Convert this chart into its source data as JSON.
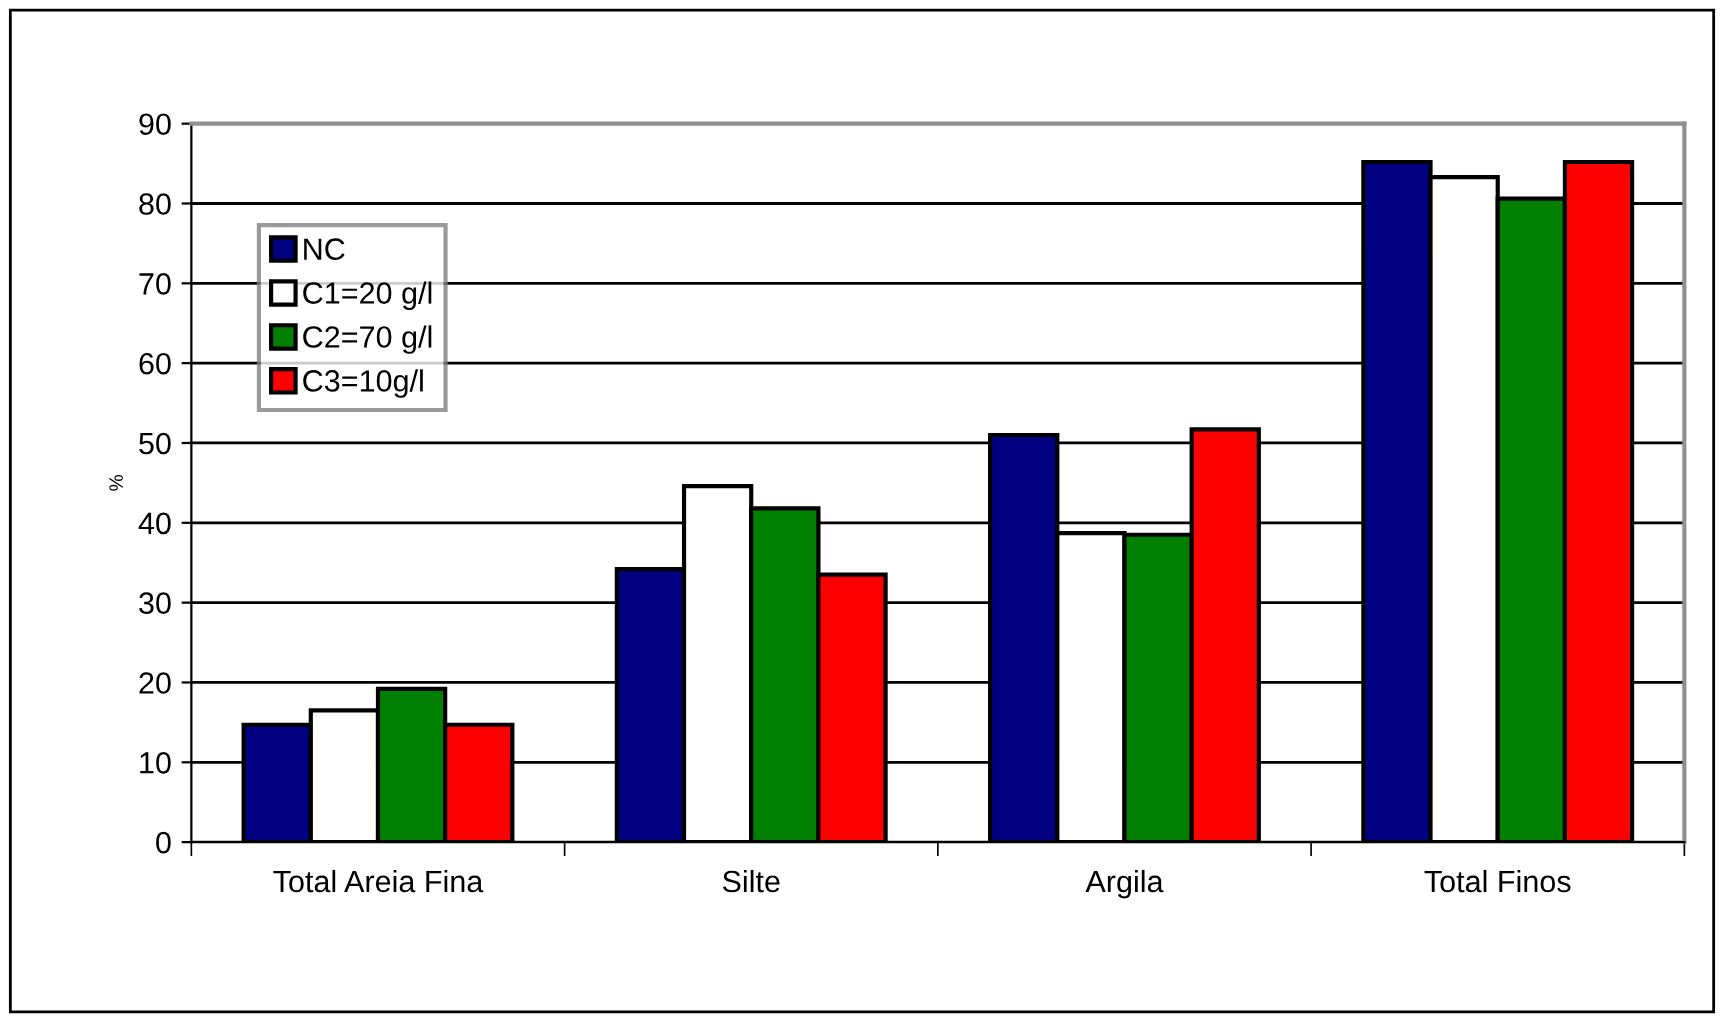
{
  "chart_data": {
    "type": "bar",
    "ylabel": "%",
    "categories": [
      "Total Areia Fina",
      "Silte",
      "Argila",
      "Total Finos"
    ],
    "series": [
      {
        "name": "NC",
        "color": "#000080",
        "values": [
          14.7,
          34.2,
          51.0,
          85.2
        ]
      },
      {
        "name": "C1=20 g/l",
        "color": "#ffffff",
        "values": [
          16.5,
          44.6,
          38.7,
          83.3
        ]
      },
      {
        "name": "C2=70 g/l",
        "color": "#008000",
        "values": [
          19.2,
          41.8,
          38.5,
          80.6
        ]
      },
      {
        "name": "C3=10g/l",
        "color": "#ff0000",
        "values": [
          14.7,
          33.5,
          51.7,
          85.2
        ]
      }
    ],
    "ylim": [
      0,
      90
    ],
    "yticks": [
      0,
      10,
      20,
      30,
      40,
      50,
      60,
      70,
      80,
      90
    ],
    "grid": "y",
    "legend": "top left"
  }
}
